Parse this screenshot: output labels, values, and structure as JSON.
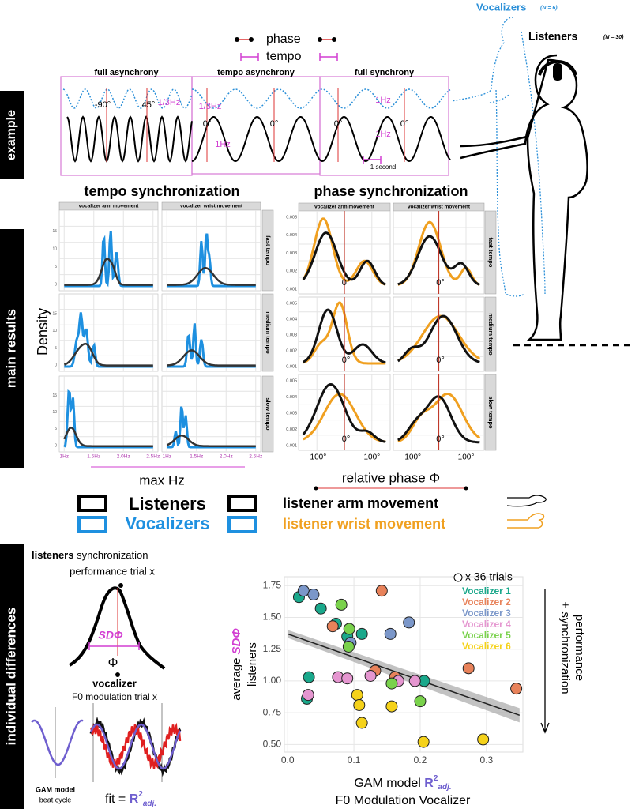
{
  "side_tabs": {
    "example": "example",
    "main": "main results",
    "individual": "individual differences"
  },
  "example": {
    "legend_phase": "phase",
    "legend_tempo": "tempo",
    "panels": [
      {
        "title": "full asynchrony",
        "labels": [
          "-90°",
          "45°",
          "1/3Hz"
        ]
      },
      {
        "title": "tempo asynchrony",
        "labels": [
          "1/3Hz",
          "0°",
          "0°",
          "1Hz"
        ]
      },
      {
        "title": "full synchrony",
        "labels": [
          "1Hz",
          "0°",
          "0°",
          "1Hz"
        ]
      }
    ],
    "scale_bar": "1 second"
  },
  "figures": {
    "vocalizers": "Vocalizers",
    "vocalizers_n": "(N = 6)",
    "listeners": "Listeners",
    "listeners_n": "(N = 30)"
  },
  "tempo": {
    "title": "tempo synchronization",
    "columns": [
      "vocalizer arm movement",
      "vocalizer wrist movement"
    ],
    "rows": [
      "fast tempo",
      "medium tempo",
      "slow tempo"
    ],
    "yticks": [
      "0",
      "5",
      "10",
      "15"
    ],
    "xticks": [
      "1Hz",
      "1.5Hz",
      "2.0Hz",
      "2.5Hz"
    ],
    "y_label": "Density",
    "x_label": "max Hz"
  },
  "phase": {
    "title": "phase synchronization",
    "columns": [
      "vocalizer arm movement",
      "vocalizer wrist movement"
    ],
    "rows": [
      "fast tempo",
      "medium tempo",
      "slow tempo"
    ],
    "yticks": [
      "0.001",
      "0.002",
      "0.003",
      "0.004",
      "0.005"
    ],
    "zero": "0°",
    "xticks": [
      "-100°",
      "100°"
    ],
    "x_label": "relative phase Φ"
  },
  "legend": {
    "listeners": "Listeners",
    "vocalizers": "Vocalizers",
    "arm": "listener arm movement",
    "wrist": "listener wrist movement"
  },
  "individual": {
    "heading_bold": "listeners",
    "heading_rest": " synchronization",
    "heading_line2": "performance trial x",
    "sd": "SDΦ",
    "phi": "Φ",
    "vocalizer": "vocalizer",
    "f0": "F0 modulation trial x",
    "gam": "GAM model",
    "beat": "beat cycle",
    "fit": "fit = ",
    "r": "R",
    "sup": "2",
    "sub": "adj."
  },
  "chart_data": {
    "type": "scatter",
    "ylabel_pre": "average ",
    "ylabel_sd": "SDΦ",
    "ylabel_post": "listeners",
    "xlabel_pre": "GAM model ",
    "xlabel_r": "R",
    "xlabel_sup": "2",
    "xlabel_sub": "adj.",
    "xlabel_line2": "F0 Modulation Vocalizer",
    "trials_note": "x 36 trials",
    "side_note": [
      "+ synchronization",
      "performance"
    ],
    "xlim": [
      -0.005,
      0.355
    ],
    "ylim": [
      0.44,
      1.82
    ],
    "xticks": [
      {
        "value": 0,
        "label": "0.0"
      },
      0.1,
      0.2,
      0.3
    ],
    "yticks": [
      {
        "value": 0.5,
        "label": "0.50"
      },
      0.75,
      {
        "value": 1,
        "label": "1.00"
      },
      1.25,
      {
        "value": 1.5,
        "label": "1.50"
      },
      1.75
    ],
    "grid": true,
    "trend": {
      "x": [
        0,
        0.35
      ],
      "y": [
        1.37,
        0.73
      ]
    },
    "series": [
      {
        "name": "Vocalizer 1",
        "color": "#1aa88b",
        "x": [
          0.017,
          0.05,
          0.073,
          0.09,
          0.112,
          0.032,
          0.029,
          0.206
        ],
        "y": [
          1.66,
          1.57,
          1.45,
          1.35,
          1.37,
          1.03,
          0.86,
          1.0
        ]
      },
      {
        "name": "Vocalizer 2",
        "color": "#e8825a",
        "x": [
          0.142,
          0.132,
          0.162,
          0.068,
          0.273,
          0.345
        ],
        "y": [
          1.71,
          1.08,
          1.03,
          1.43,
          1.1,
          0.94
        ]
      },
      {
        "name": "Vocalizer 3",
        "color": "#7b97c9",
        "x": [
          0.024,
          0.039,
          0.155,
          0.183,
          0.095
        ],
        "y": [
          1.71,
          1.68,
          1.37,
          1.46,
          1.3
        ]
      },
      {
        "name": "Vocalizer 4",
        "color": "#e596d0",
        "x": [
          0.076,
          0.031,
          0.125,
          0.167,
          0.192,
          0.09
        ],
        "y": [
          1.03,
          0.89,
          1.04,
          1.0,
          1.0,
          1.02
        ]
      },
      {
        "name": "Vocalizer 5",
        "color": "#7ad24c",
        "x": [
          0.081,
          0.093,
          0.092,
          0.157,
          0.2
        ],
        "y": [
          1.6,
          1.41,
          1.27,
          0.98,
          0.84
        ]
      },
      {
        "name": "Vocalizer 6",
        "color": "#f5d21a",
        "x": [
          0.105,
          0.108,
          0.112,
          0.157,
          0.205,
          0.295
        ],
        "y": [
          0.89,
          0.81,
          0.67,
          0.8,
          0.52,
          0.54
        ]
      }
    ]
  }
}
